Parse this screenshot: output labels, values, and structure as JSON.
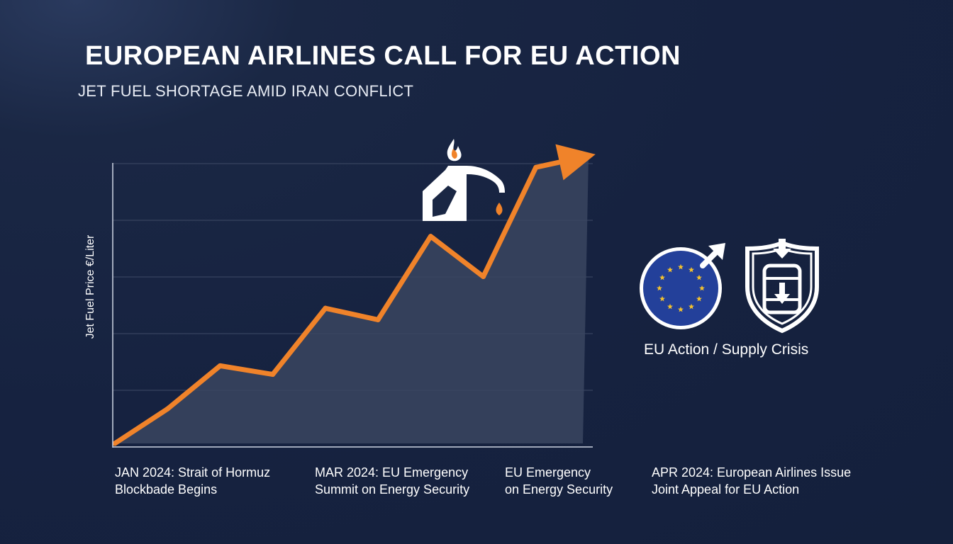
{
  "header": {
    "title": "EUROPEAN AIRLINES CALL FOR EU ACTION",
    "subtitle": "JET FUEL SHORTAGE AMID IRAN CONFLICT"
  },
  "chart_data": {
    "type": "area",
    "ylabel": "Jet Fuel Price €/Liter",
    "xlabel": "",
    "x": [
      0,
      1,
      2,
      3,
      4,
      5,
      6,
      7,
      8,
      9
    ],
    "values": [
      0.0,
      0.12,
      0.27,
      0.24,
      0.47,
      0.43,
      0.72,
      0.58,
      0.96,
      1.0
    ],
    "y_ticks_labeled": false,
    "grid": true,
    "line_color": "#f0832a",
    "fill_color": "#3a4560",
    "arrow_end": true
  },
  "milestones": [
    {
      "line1": "JAN 2024: Strait of Hormuz",
      "line2": "Blockbade Begins"
    },
    {
      "line1": "MAR 2024: EU Emergency",
      "line2": "Summit on Energy Security"
    },
    {
      "line1": "EU Emergency",
      "line2": "on Energy Security"
    },
    {
      "line1": "APR 2024: European Airlines Issue",
      "line2": "Joint Appeal for EU Action"
    }
  ],
  "side_panel": {
    "caption": "EU Action / Supply Crisis",
    "icons": [
      "eu-flag-icon",
      "shield-barrel-icon",
      "fuel-pump-icon"
    ],
    "eu_blue": "#23409a",
    "star_color": "#f2c12e"
  }
}
